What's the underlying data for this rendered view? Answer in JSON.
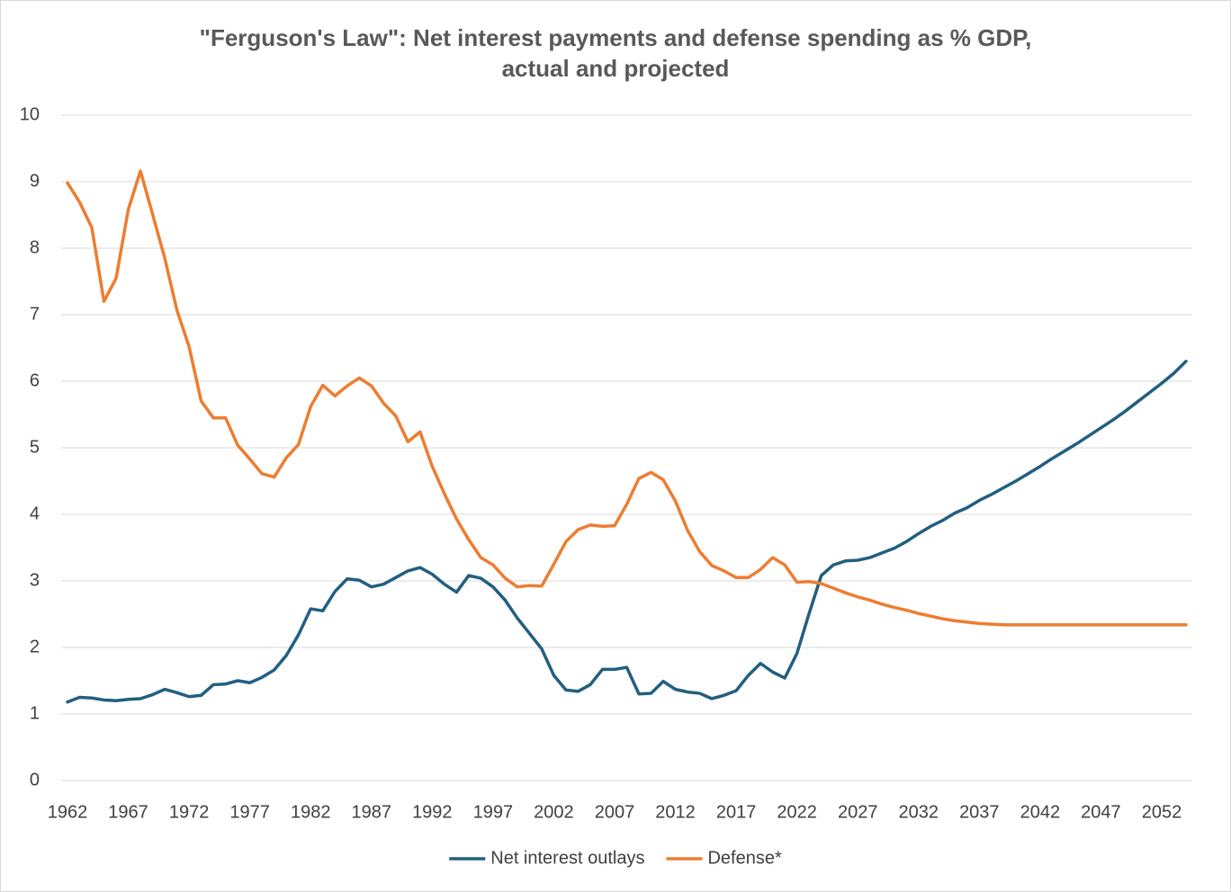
{
  "chart_data": {
    "type": "line",
    "title": [
      "\"Ferguson's Law\": Net interest payments and defense spending as % GDP,",
      "actual and projected"
    ],
    "x": [
      1962,
      1963,
      1964,
      1965,
      1966,
      1967,
      1968,
      1969,
      1970,
      1971,
      1972,
      1973,
      1974,
      1975,
      1976,
      1977,
      1978,
      1979,
      1980,
      1981,
      1982,
      1983,
      1984,
      1985,
      1986,
      1987,
      1988,
      1989,
      1990,
      1991,
      1992,
      1993,
      1994,
      1995,
      1996,
      1997,
      1998,
      1999,
      2000,
      2001,
      2002,
      2003,
      2004,
      2005,
      2006,
      2007,
      2008,
      2009,
      2010,
      2011,
      2012,
      2013,
      2014,
      2015,
      2016,
      2017,
      2018,
      2019,
      2020,
      2021,
      2022,
      2023,
      2024,
      2025,
      2026,
      2027,
      2028,
      2029,
      2030,
      2031,
      2032,
      2033,
      2034,
      2035,
      2036,
      2037,
      2038,
      2039,
      2040,
      2041,
      2042,
      2043,
      2044,
      2045,
      2046,
      2047,
      2048,
      2049,
      2050,
      2051,
      2052,
      2053,
      2054
    ],
    "series": [
      {
        "name": "Net interest outlays",
        "color": "#215f80",
        "values": [
          1.18,
          1.25,
          1.24,
          1.21,
          1.2,
          1.22,
          1.23,
          1.29,
          1.37,
          1.32,
          1.26,
          1.28,
          1.44,
          1.45,
          1.5,
          1.47,
          1.55,
          1.66,
          1.88,
          2.19,
          2.58,
          2.55,
          2.84,
          3.03,
          3.01,
          2.91,
          2.95,
          3.05,
          3.15,
          3.2,
          3.1,
          2.95,
          2.83,
          3.08,
          3.04,
          2.91,
          2.71,
          2.44,
          2.21,
          1.98,
          1.58,
          1.36,
          1.34,
          1.44,
          1.67,
          1.67,
          1.7,
          1.3,
          1.31,
          1.49,
          1.37,
          1.33,
          1.31,
          1.23,
          1.28,
          1.35,
          1.58,
          1.76,
          1.63,
          1.54,
          1.91,
          2.51,
          3.08,
          3.24,
          3.3,
          3.31,
          3.35,
          3.42,
          3.49,
          3.59,
          3.71,
          3.82,
          3.91,
          4.02,
          4.1,
          4.21,
          4.3,
          4.4,
          4.5,
          4.61,
          4.72,
          4.84,
          4.95,
          5.06,
          5.18,
          5.3,
          5.42,
          5.55,
          5.69,
          5.83,
          5.97,
          6.12,
          6.3
        ]
      },
      {
        "name": "Defense*",
        "color": "#ed7d31",
        "values": [
          8.98,
          8.69,
          8.31,
          7.2,
          7.55,
          8.58,
          9.16,
          8.51,
          7.85,
          7.07,
          6.52,
          5.7,
          5.45,
          5.45,
          5.04,
          4.83,
          4.61,
          4.56,
          4.85,
          5.05,
          5.62,
          5.94,
          5.78,
          5.93,
          6.05,
          5.93,
          5.67,
          5.48,
          5.09,
          5.24,
          4.72,
          4.31,
          3.93,
          3.62,
          3.35,
          3.24,
          3.04,
          2.91,
          2.93,
          2.92,
          3.25,
          3.59,
          3.77,
          3.84,
          3.82,
          3.83,
          4.15,
          4.54,
          4.63,
          4.52,
          4.2,
          3.76,
          3.44,
          3.23,
          3.15,
          3.05,
          3.05,
          3.17,
          3.35,
          3.24,
          2.98,
          2.99,
          2.96,
          2.89,
          2.82,
          2.76,
          2.71,
          2.65,
          2.6,
          2.56,
          2.51,
          2.47,
          2.43,
          2.4,
          2.38,
          2.36,
          2.35,
          2.34,
          2.34,
          2.34,
          2.34,
          2.34,
          2.34,
          2.34,
          2.34,
          2.34,
          2.34,
          2.34,
          2.34,
          2.34,
          2.34,
          2.34,
          2.34
        ]
      }
    ],
    "xlim": [
      1962,
      2054
    ],
    "xticks": [
      1962,
      1967,
      1972,
      1977,
      1982,
      1987,
      1992,
      1997,
      2002,
      2007,
      2012,
      2017,
      2022,
      2027,
      2032,
      2037,
      2042,
      2047,
      2052
    ],
    "ylim": [
      0,
      10
    ],
    "yticks": [
      0,
      1,
      2,
      3,
      4,
      5,
      6,
      7,
      8,
      9,
      10
    ],
    "grid": true,
    "legend": "bottom"
  }
}
